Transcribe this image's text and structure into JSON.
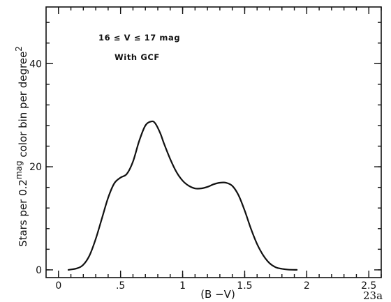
{
  "chart_data": {
    "type": "line",
    "xlabel": "(B −V)",
    "ylabel": "Stars per 0.2",
    "ylabel_sup1": "mag",
    "ylabel_mid": " color bin per degree",
    "ylabel_sup2": "2",
    "xlim": [
      -0.1,
      2.6
    ],
    "ylim": [
      -1.5,
      51
    ],
    "x_ticks_major": [
      0,
      0.5,
      1,
      1.5,
      2,
      2.5
    ],
    "x_tick_labels": [
      "0",
      ".5",
      "1",
      "1.5",
      "2",
      "2.5"
    ],
    "x_ticks_minor_step": 0.1,
    "y_ticks_major": [
      0,
      20,
      40
    ],
    "y_tick_labels": [
      "0",
      "20",
      "40"
    ],
    "y_ticks_minor_step": 4,
    "annotations": [
      "16 ≤ V ≤ 17 mag",
      "With GCF"
    ],
    "figure_label": "23a",
    "grid": false,
    "series": [
      {
        "x": [
          0.08,
          0.15,
          0.2,
          0.25,
          0.3,
          0.35,
          0.4,
          0.45,
          0.5,
          0.55,
          0.6,
          0.65,
          0.7,
          0.75,
          0.78,
          0.82,
          0.85,
          0.9,
          0.95,
          1.0,
          1.05,
          1.1,
          1.15,
          1.2,
          1.25,
          1.3,
          1.35,
          1.4,
          1.45,
          1.5,
          1.55,
          1.6,
          1.65,
          1.7,
          1.75,
          1.8,
          1.85,
          1.92
        ],
        "y": [
          0.0,
          0.3,
          1.0,
          2.8,
          6.0,
          10.0,
          14.0,
          16.8,
          17.9,
          18.6,
          21.0,
          25.0,
          28.0,
          28.8,
          28.4,
          26.5,
          24.5,
          21.5,
          19.0,
          17.3,
          16.3,
          15.8,
          15.8,
          16.1,
          16.6,
          16.9,
          16.9,
          16.3,
          14.5,
          11.5,
          8.0,
          5.0,
          2.8,
          1.3,
          0.5,
          0.2,
          0.05,
          0.0
        ]
      }
    ]
  }
}
